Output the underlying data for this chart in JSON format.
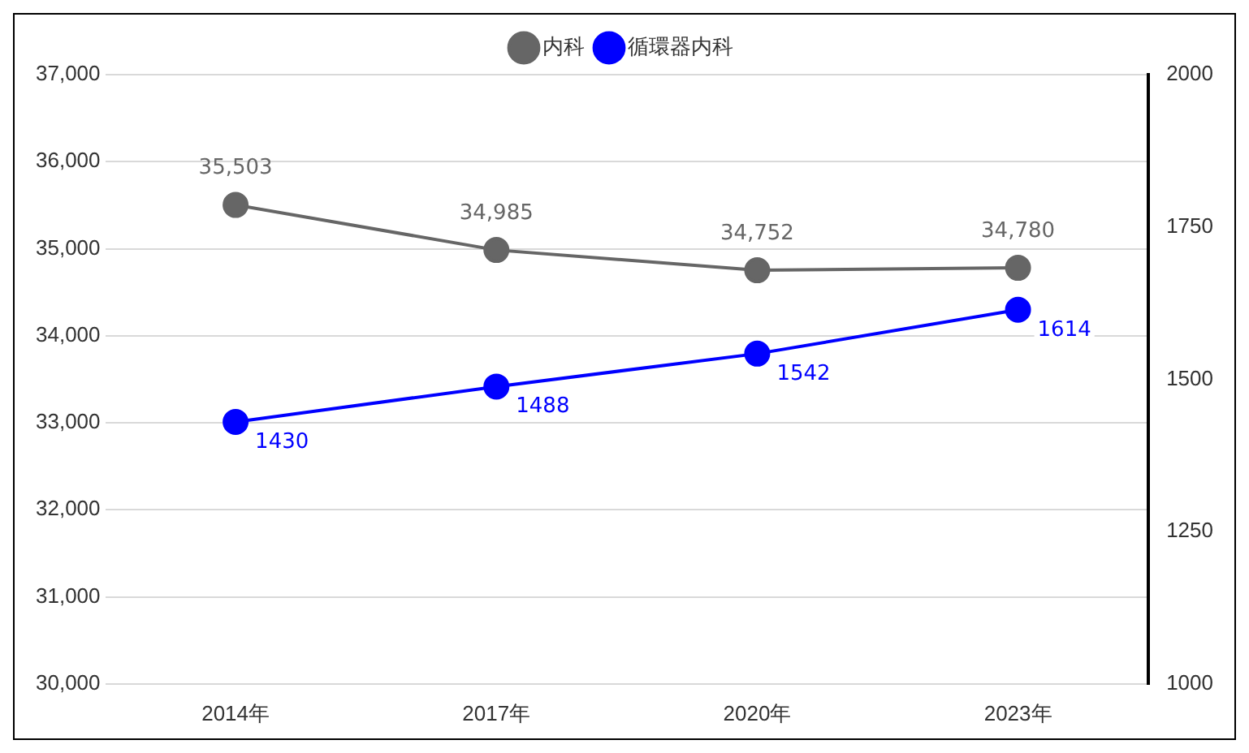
{
  "chart_data": {
    "type": "line",
    "categories": [
      "2014年",
      "2017年",
      "2020年",
      "2023年"
    ],
    "series": [
      {
        "name": "内科",
        "color": "#666666",
        "values": [
          35503,
          34985,
          34752,
          34780
        ],
        "value_labels": [
          "35,503",
          "34,985",
          "34,752",
          "34,780"
        ]
      },
      {
        "name": "循環器内科",
        "color": "#0000ff",
        "axis": "y2",
        "values": [
          1430,
          1488,
          1542,
          1614
        ],
        "value_labels": [
          "1430",
          "1488",
          "1542",
          "1614"
        ]
      }
    ],
    "ylim": [
      30000,
      37000
    ],
    "yticks": [
      {
        "value": 30000,
        "label": "30,000"
      },
      {
        "value": 31000,
        "label": "31,000"
      },
      {
        "value": 32000,
        "label": "32,000"
      },
      {
        "value": 33000,
        "label": "33,000"
      },
      {
        "value": 34000,
        "label": "34,000"
      },
      {
        "value": 35000,
        "label": "35,000"
      },
      {
        "value": 36000,
        "label": "36,000"
      },
      {
        "value": 37000,
        "label": "37,000"
      }
    ],
    "y2lim": [
      1000,
      2000
    ],
    "y2ticks": [
      1000,
      1250,
      1500,
      1750,
      2000
    ],
    "grid": "y",
    "legend": "top",
    "marker": "circle",
    "line_style": "solid"
  }
}
